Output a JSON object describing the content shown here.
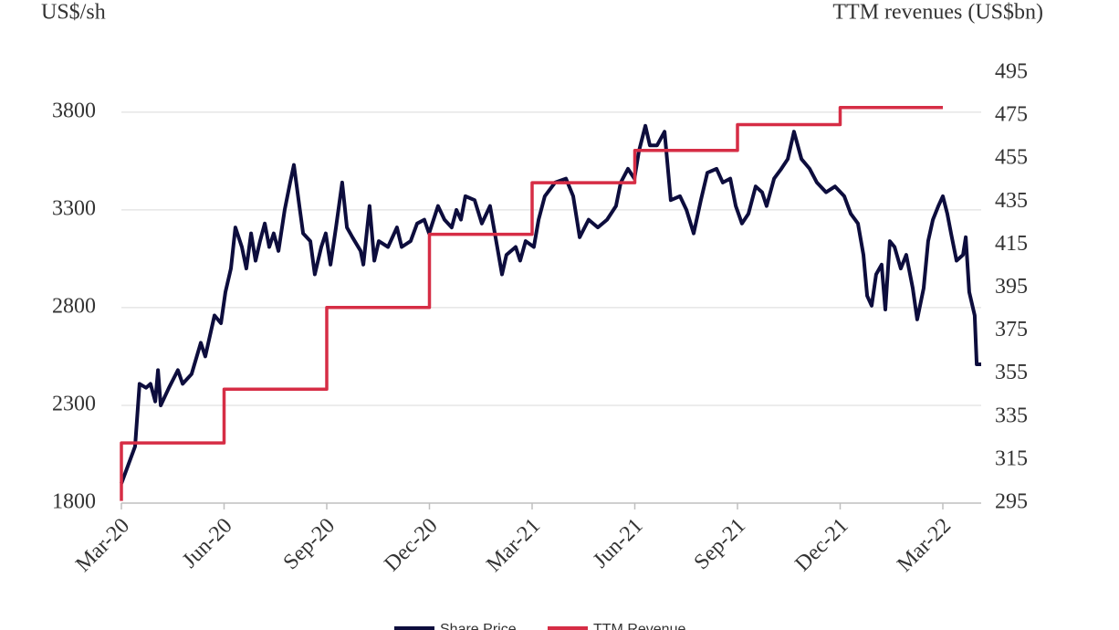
{
  "chart_data": {
    "type": "line",
    "ylabel": "US$/sh",
    "y2label": "TTM revenues (US$bn)",
    "xlim": [
      0,
      25.12
    ],
    "xticks": [
      {
        "value": 0,
        "label": "Mar-20"
      },
      {
        "value": 3,
        "label": "Jun-20"
      },
      {
        "value": 6,
        "label": "Sep-20"
      },
      {
        "value": 9,
        "label": "Dec-20"
      },
      {
        "value": 12,
        "label": "Mar-21"
      },
      {
        "value": 15,
        "label": "Jun-21"
      },
      {
        "value": 18,
        "label": "Sep-21"
      },
      {
        "value": 21,
        "label": "Dec-21"
      },
      {
        "value": 24,
        "label": "Mar-22"
      }
    ],
    "ylim": [
      1800,
      4000
    ],
    "yticks": [
      1800,
      2300,
      2800,
      3300,
      3800
    ],
    "y2lim": [
      295,
      495
    ],
    "y2ticks": [
      295,
      315,
      335,
      355,
      375,
      395,
      415,
      435,
      455,
      475,
      495
    ],
    "grid": true,
    "legend": "bottom",
    "series": [
      {
        "name": "Share Price",
        "color": "#0d0d3d",
        "x": [
          0.0,
          0.19,
          0.4,
          0.53,
          0.72,
          0.85,
          0.99,
          1.07,
          1.15,
          1.39,
          1.65,
          1.79,
          2.05,
          2.32,
          2.45,
          2.72,
          2.91,
          3.04,
          3.2,
          3.33,
          3.52,
          3.65,
          3.79,
          3.92,
          4.05,
          4.19,
          4.32,
          4.45,
          4.59,
          4.77,
          4.93,
          5.04,
          5.2,
          5.31,
          5.52,
          5.65,
          5.84,
          5.97,
          6.11,
          6.27,
          6.45,
          6.59,
          6.75,
          6.99,
          7.07,
          7.25,
          7.39,
          7.52,
          7.79,
          8.05,
          8.19,
          8.45,
          8.64,
          8.85,
          8.99,
          9.25,
          9.44,
          9.65,
          9.79,
          9.92,
          10.05,
          10.32,
          10.53,
          10.77,
          10.93,
          11.12,
          11.25,
          11.52,
          11.65,
          11.81,
          12.05,
          12.19,
          12.37,
          12.67,
          12.99,
          13.2,
          13.39,
          13.65,
          13.92,
          14.19,
          14.45,
          14.59,
          14.8,
          14.99,
          15.12,
          15.31,
          15.44,
          15.65,
          15.87,
          16.05,
          16.32,
          16.51,
          16.72,
          16.93,
          17.12,
          17.39,
          17.57,
          17.79,
          17.95,
          18.13,
          18.32,
          18.53,
          18.72,
          18.85,
          19.07,
          19.28,
          19.47,
          19.65,
          19.87,
          20.11,
          20.32,
          20.59,
          20.85,
          21.12,
          21.31,
          21.52,
          21.68,
          21.79,
          21.92,
          22.05,
          22.21,
          22.32,
          22.45,
          22.59,
          22.77,
          22.93,
          23.12,
          23.25,
          23.44,
          23.57,
          23.71,
          23.87,
          24.0,
          24.13,
          24.24,
          24.4,
          24.59,
          24.67,
          24.77,
          24.93,
          24.99,
          25.12
        ],
        "values": [
          1900,
          1990,
          2090,
          2410,
          2390,
          2410,
          2320,
          2480,
          2300,
          2390,
          2480,
          2410,
          2460,
          2620,
          2550,
          2760,
          2720,
          2880,
          3000,
          3210,
          3110,
          3000,
          3180,
          3040,
          3140,
          3230,
          3110,
          3180,
          3090,
          3300,
          3440,
          3530,
          3320,
          3180,
          3140,
          2970,
          3110,
          3180,
          3020,
          3210,
          3440,
          3210,
          3160,
          3090,
          3020,
          3320,
          3040,
          3140,
          3110,
          3210,
          3110,
          3140,
          3230,
          3250,
          3180,
          3320,
          3250,
          3210,
          3300,
          3250,
          3370,
          3350,
          3230,
          3320,
          3160,
          2970,
          3070,
          3110,
          3040,
          3140,
          3110,
          3250,
          3370,
          3440,
          3460,
          3370,
          3160,
          3250,
          3210,
          3250,
          3320,
          3440,
          3510,
          3460,
          3600,
          3730,
          3630,
          3630,
          3700,
          3350,
          3370,
          3300,
          3180,
          3350,
          3490,
          3510,
          3440,
          3460,
          3320,
          3230,
          3280,
          3420,
          3390,
          3320,
          3460,
          3510,
          3560,
          3700,
          3560,
          3510,
          3440,
          3390,
          3420,
          3370,
          3280,
          3230,
          3070,
          2860,
          2810,
          2970,
          3020,
          2790,
          3140,
          3110,
          3000,
          3070,
          2900,
          2740,
          2900,
          3140,
          3250,
          3320,
          3370,
          3280,
          3180,
          3040,
          3070,
          3160,
          2880,
          2760,
          2510,
          2510
        ]
      },
      {
        "name": "TTM Revenue",
        "color": "#d62d45",
        "axis": "y2",
        "x": [
          0,
          0,
          3,
          3,
          6,
          6,
          9,
          9,
          12,
          12,
          15,
          15,
          18,
          18,
          21,
          21,
          24
        ],
        "values": [
          296,
          323,
          323,
          348,
          348,
          386,
          386,
          420,
          420,
          444,
          444,
          459,
          459,
          471,
          471,
          479,
          479
        ]
      }
    ]
  }
}
